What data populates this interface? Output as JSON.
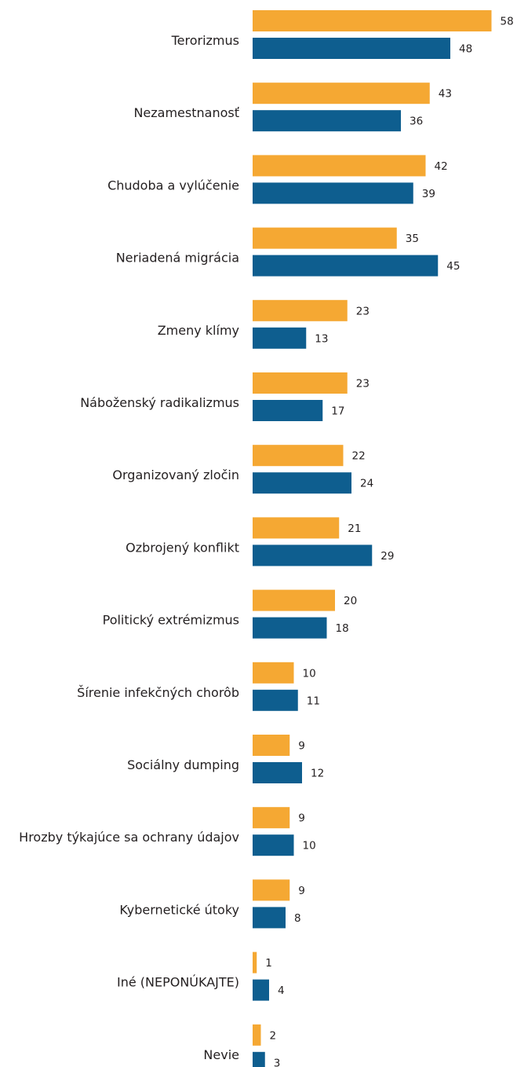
{
  "chart_data": {
    "type": "bar",
    "orientation": "horizontal",
    "categories": [
      "Terorizmus",
      "Nezamestnanosť",
      "Chudoba a vylúčenie",
      "Neriadená migrácia",
      "Zmeny klímy",
      "Náboženský radikalizmus",
      "Organizovaný zločin",
      "Ozbrojený konflikt",
      "Politický extrémizmus",
      "Šírenie infekčných chorôb",
      "Sociálny dumping",
      "Hrozby týkajúce sa ochrany údajov",
      "Kybernetické útoky",
      "Iné (NEPONÚKAJTE)",
      "Nevie"
    ],
    "series": [
      {
        "color": "#f5a833",
        "values": [
          58,
          43,
          42,
          35,
          23,
          23,
          22,
          21,
          20,
          10,
          9,
          9,
          9,
          1,
          2
        ]
      },
      {
        "color": "#0e5e8f",
        "values": [
          48,
          36,
          39,
          45,
          13,
          17,
          24,
          29,
          18,
          11,
          12,
          10,
          8,
          4,
          3
        ]
      }
    ],
    "data_labels": true,
    "grid": false,
    "legend": "none",
    "xlim": [
      0,
      58
    ]
  }
}
